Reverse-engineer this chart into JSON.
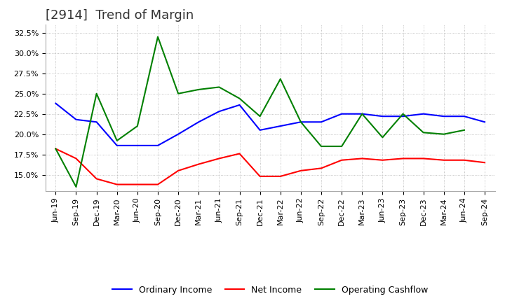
{
  "title": "[2914]  Trend of Margin",
  "x_labels": [
    "Jun-19",
    "Sep-19",
    "Dec-19",
    "Mar-20",
    "Jun-20",
    "Sep-20",
    "Dec-20",
    "Mar-21",
    "Jun-21",
    "Sep-21",
    "Dec-21",
    "Mar-22",
    "Jun-22",
    "Sep-22",
    "Dec-22",
    "Mar-23",
    "Jun-23",
    "Sep-23",
    "Dec-23",
    "Mar-24",
    "Jun-24",
    "Sep-24"
  ],
  "ordinary_income": [
    0.238,
    0.218,
    0.215,
    0.186,
    0.186,
    0.186,
    0.2,
    0.215,
    0.228,
    0.236,
    0.205,
    0.21,
    0.215,
    0.215,
    0.225,
    0.225,
    0.222,
    0.222,
    0.225,
    0.222,
    0.222,
    0.215
  ],
  "net_income": [
    0.182,
    0.17,
    0.145,
    0.138,
    0.138,
    0.138,
    0.155,
    0.163,
    0.17,
    0.176,
    0.148,
    0.148,
    0.155,
    0.158,
    0.168,
    0.17,
    0.168,
    0.17,
    0.17,
    0.168,
    0.168,
    0.165
  ],
  "operating_cashflow": [
    0.182,
    0.135,
    0.25,
    0.192,
    0.21,
    0.32,
    0.25,
    0.255,
    0.258,
    0.244,
    0.222,
    0.268,
    0.215,
    0.185,
    0.185,
    0.225,
    0.196,
    0.225,
    0.202,
    0.2,
    0.205,
    null
  ],
  "ordinary_income_color": "#0000FF",
  "net_income_color": "#FF0000",
  "operating_cashflow_color": "#008000",
  "ylim_min": 0.13,
  "ylim_max": 0.335,
  "yticks": [
    0.15,
    0.175,
    0.2,
    0.225,
    0.25,
    0.275,
    0.3,
    0.325
  ],
  "ytick_labels": [
    "15.0%",
    "17.5%",
    "20.0%",
    "22.5%",
    "25.0%",
    "27.5%",
    "30.0%",
    "32.5%"
  ],
  "background_color": "#FFFFFF",
  "grid_color": "#AAAAAA",
  "title_fontsize": 13,
  "axis_fontsize": 8,
  "legend_labels": [
    "Ordinary Income",
    "Net Income",
    "Operating Cashflow"
  ],
  "line_width": 1.5
}
